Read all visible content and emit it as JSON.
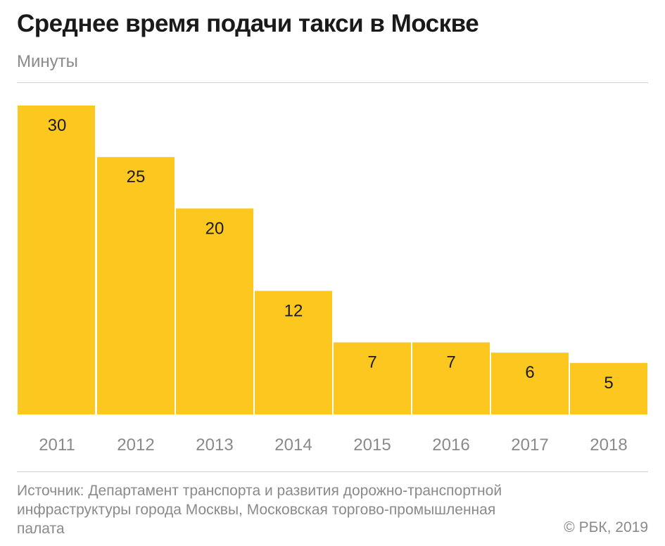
{
  "title": "Среднее время подачи такси в Москве",
  "subtitle": "Минуты",
  "source": "Источник: Департамент транспорта и развития дорожно-транспортной инфраструктуры города Москвы, Московская торгово-промышленная палата",
  "copyright": "© РБК, 2019",
  "colors": {
    "bar": "#fcc81f",
    "axis_label": "#8a8a8a",
    "value_label": "#1a1a1a"
  },
  "chart_data": {
    "type": "bar",
    "categories": [
      "2011",
      "2012",
      "2013",
      "2014",
      "2015",
      "2016",
      "2017",
      "2018"
    ],
    "values": [
      30,
      25,
      20,
      12,
      7,
      7,
      6,
      5
    ],
    "title": "Среднее время подачи такси в Москве",
    "ylabel": "Минуты",
    "ylim": [
      0,
      30
    ],
    "grid": false,
    "legend": "none",
    "data_labels": true
  }
}
